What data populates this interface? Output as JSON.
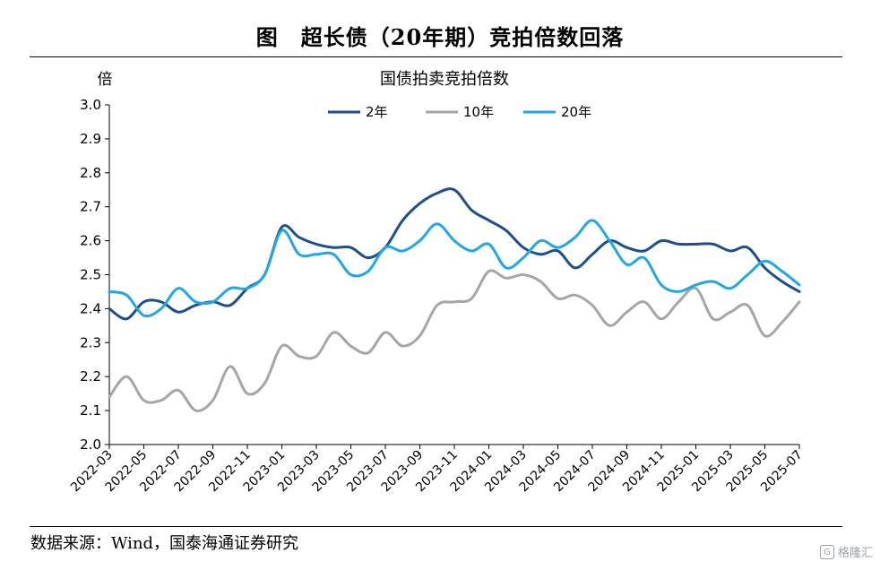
{
  "figure": {
    "title": "图　超长债（20年期）竞拍倍数回落",
    "source": "数据来源：Wind，国泰海通证券研究",
    "watermark": "格隆汇",
    "watermark_icon": "g-logo-icon"
  },
  "chart_data": {
    "type": "line",
    "title": "国债拍卖竞拍倍数",
    "ylabel": "倍",
    "xlabel": "",
    "ylim": [
      2.0,
      3.0
    ],
    "yticks": [
      "2.0",
      "2.1",
      "2.2",
      "2.3",
      "2.4",
      "2.5",
      "2.6",
      "2.7",
      "2.8",
      "2.9",
      "3.0"
    ],
    "xlim": [
      "2022-03",
      "2025-07"
    ],
    "xticks": [
      "2022-03",
      "2022-05",
      "2022-07",
      "2022-09",
      "2022-11",
      "2023-01",
      "2023-03",
      "2023-05",
      "2023-07",
      "2023-09",
      "2023-11",
      "2024-01",
      "2024-03",
      "2024-05",
      "2024-07",
      "2024-09",
      "2024-11",
      "2025-01",
      "2025-03",
      "2025-05",
      "2025-07"
    ],
    "legend_position": "top-center",
    "grid": false,
    "series": [
      {
        "name": "2年",
        "color": "#1f4e8c",
        "points": [
          [
            "2022-03",
            2.4
          ],
          [
            "2022-04",
            2.37
          ],
          [
            "2022-05",
            2.42
          ],
          [
            "2022-06",
            2.42
          ],
          [
            "2022-07",
            2.39
          ],
          [
            "2022-08",
            2.41
          ],
          [
            "2022-09",
            2.42
          ],
          [
            "2022-10",
            2.41
          ],
          [
            "2022-11",
            2.46
          ],
          [
            "2022-12",
            2.5
          ],
          [
            "2023-01",
            2.64
          ],
          [
            "2023-02",
            2.61
          ],
          [
            "2023-03",
            2.59
          ],
          [
            "2023-04",
            2.58
          ],
          [
            "2023-05",
            2.58
          ],
          [
            "2023-06",
            2.55
          ],
          [
            "2023-07",
            2.58
          ],
          [
            "2023-08",
            2.66
          ],
          [
            "2023-09",
            2.71
          ],
          [
            "2023-10",
            2.74
          ],
          [
            "2023-11",
            2.75
          ],
          [
            "2023-12",
            2.69
          ],
          [
            "2024-01",
            2.66
          ],
          [
            "2024-02",
            2.63
          ],
          [
            "2024-03",
            2.58
          ],
          [
            "2024-04",
            2.56
          ],
          [
            "2024-05",
            2.57
          ],
          [
            "2024-06",
            2.52
          ],
          [
            "2024-07",
            2.56
          ],
          [
            "2024-08",
            2.6
          ],
          [
            "2024-09",
            2.58
          ],
          [
            "2024-10",
            2.57
          ],
          [
            "2024-11",
            2.6
          ],
          [
            "2024-12",
            2.59
          ],
          [
            "2025-01",
            2.59
          ],
          [
            "2025-02",
            2.59
          ],
          [
            "2025-03",
            2.57
          ],
          [
            "2025-04",
            2.58
          ],
          [
            "2025-05",
            2.52
          ],
          [
            "2025-06",
            2.48
          ],
          [
            "2025-07",
            2.45
          ]
        ]
      },
      {
        "name": "10年",
        "color": "#a6a6a6",
        "points": [
          [
            "2022-03",
            2.14
          ],
          [
            "2022-04",
            2.2
          ],
          [
            "2022-05",
            2.13
          ],
          [
            "2022-06",
            2.13
          ],
          [
            "2022-07",
            2.16
          ],
          [
            "2022-08",
            2.1
          ],
          [
            "2022-09",
            2.13
          ],
          [
            "2022-10",
            2.23
          ],
          [
            "2022-11",
            2.15
          ],
          [
            "2022-12",
            2.18
          ],
          [
            "2023-01",
            2.29
          ],
          [
            "2023-02",
            2.26
          ],
          [
            "2023-03",
            2.26
          ],
          [
            "2023-04",
            2.33
          ],
          [
            "2023-05",
            2.29
          ],
          [
            "2023-06",
            2.27
          ],
          [
            "2023-07",
            2.33
          ],
          [
            "2023-08",
            2.29
          ],
          [
            "2023-09",
            2.32
          ],
          [
            "2023-10",
            2.41
          ],
          [
            "2023-11",
            2.42
          ],
          [
            "2023-12",
            2.43
          ],
          [
            "2024-01",
            2.51
          ],
          [
            "2024-02",
            2.49
          ],
          [
            "2024-03",
            2.5
          ],
          [
            "2024-04",
            2.48
          ],
          [
            "2024-05",
            2.43
          ],
          [
            "2024-06",
            2.44
          ],
          [
            "2024-07",
            2.41
          ],
          [
            "2024-08",
            2.35
          ],
          [
            "2024-09",
            2.39
          ],
          [
            "2024-10",
            2.42
          ],
          [
            "2024-11",
            2.37
          ],
          [
            "2024-12",
            2.42
          ],
          [
            "2025-01",
            2.46
          ],
          [
            "2025-02",
            2.37
          ],
          [
            "2025-03",
            2.39
          ],
          [
            "2025-04",
            2.41
          ],
          [
            "2025-05",
            2.32
          ],
          [
            "2025-06",
            2.36
          ],
          [
            "2025-07",
            2.42
          ]
        ]
      },
      {
        "name": "20年",
        "color": "#22a7e6",
        "points": [
          [
            "2022-03",
            2.45
          ],
          [
            "2022-04",
            2.44
          ],
          [
            "2022-05",
            2.38
          ],
          [
            "2022-06",
            2.4
          ],
          [
            "2022-07",
            2.46
          ],
          [
            "2022-08",
            2.42
          ],
          [
            "2022-09",
            2.42
          ],
          [
            "2022-10",
            2.46
          ],
          [
            "2022-11",
            2.46
          ],
          [
            "2022-12",
            2.5
          ],
          [
            "2023-01",
            2.63
          ],
          [
            "2023-02",
            2.56
          ],
          [
            "2023-03",
            2.56
          ],
          [
            "2023-04",
            2.56
          ],
          [
            "2023-05",
            2.5
          ],
          [
            "2023-06",
            2.51
          ],
          [
            "2023-07",
            2.58
          ],
          [
            "2023-08",
            2.57
          ],
          [
            "2023-09",
            2.6
          ],
          [
            "2023-10",
            2.65
          ],
          [
            "2023-11",
            2.6
          ],
          [
            "2023-12",
            2.57
          ],
          [
            "2024-01",
            2.59
          ],
          [
            "2024-02",
            2.52
          ],
          [
            "2024-03",
            2.55
          ],
          [
            "2024-04",
            2.6
          ],
          [
            "2024-05",
            2.58
          ],
          [
            "2024-06",
            2.61
          ],
          [
            "2024-07",
            2.66
          ],
          [
            "2024-08",
            2.6
          ],
          [
            "2024-09",
            2.53
          ],
          [
            "2024-10",
            2.55
          ],
          [
            "2024-11",
            2.47
          ],
          [
            "2024-12",
            2.45
          ],
          [
            "2025-01",
            2.47
          ],
          [
            "2025-02",
            2.48
          ],
          [
            "2025-03",
            2.46
          ],
          [
            "2025-04",
            2.5
          ],
          [
            "2025-05",
            2.54
          ],
          [
            "2025-06",
            2.51
          ],
          [
            "2025-07",
            2.47
          ]
        ]
      }
    ]
  }
}
